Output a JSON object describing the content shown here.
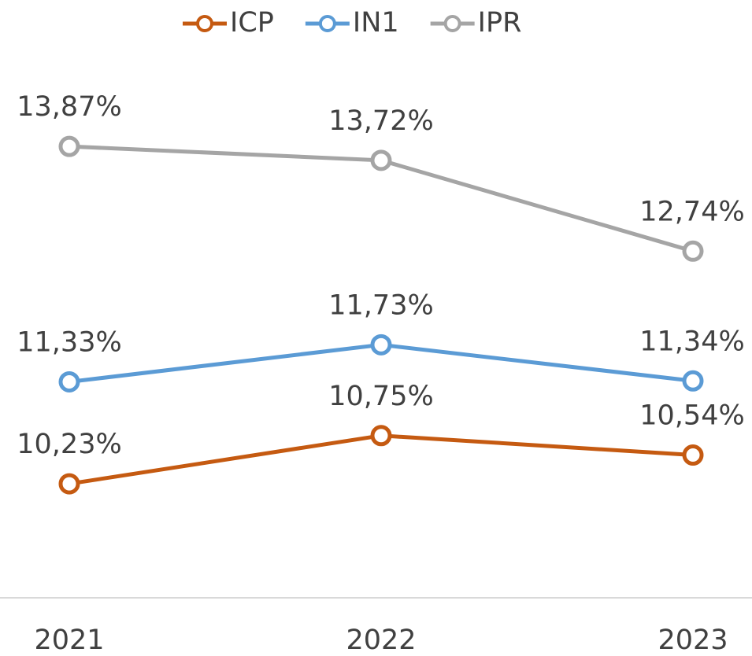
{
  "chart_data": {
    "type": "line",
    "categories": [
      "2021",
      "2022",
      "2023"
    ],
    "series": [
      {
        "name": "ICP",
        "color": "#c55a11",
        "values": [
          10.23,
          10.75,
          10.54
        ],
        "value_labels": [
          "10,23%",
          "10,75%",
          "10,54%"
        ]
      },
      {
        "name": "IN1",
        "color": "#5b9bd5",
        "values": [
          11.33,
          11.73,
          11.34
        ],
        "value_labels": [
          "11,33%",
          "11,73%",
          "11,34%"
        ]
      },
      {
        "name": "IPR",
        "color": "#a5a5a5",
        "values": [
          13.87,
          13.72,
          12.74
        ],
        "value_labels": [
          "13,87%",
          "13,72%",
          "12,74%"
        ]
      }
    ],
    "ylim": [
      9,
      15
    ],
    "legend": "top"
  }
}
